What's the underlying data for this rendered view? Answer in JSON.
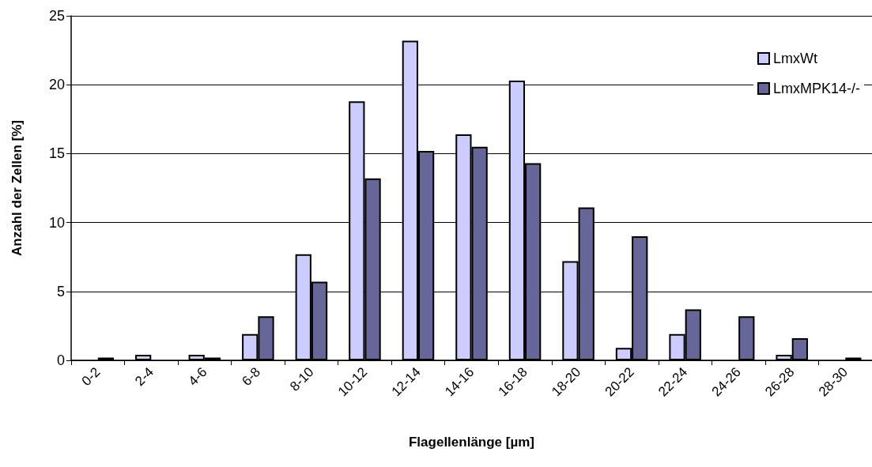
{
  "chart_data": {
    "type": "bar",
    "xlabel": "Flagellenlänge [µm]",
    "ylabel": "Anzahl der Zellen [%]",
    "categories": [
      "0-2",
      "2-4",
      "4-6",
      "6-8",
      "8-10",
      "10-12",
      "12-14",
      "14-16",
      "16-18",
      "18-20",
      "20-22",
      "22-24",
      "24-26",
      "26-28",
      "28-30"
    ],
    "series": [
      {
        "name": "LmxWt",
        "color": "#ccccff",
        "values": [
          0,
          0.4,
          0.4,
          1.9,
          7.7,
          18.8,
          23.2,
          16.4,
          20.3,
          7.2,
          0.9,
          1.9,
          0,
          0.4,
          0
        ]
      },
      {
        "name": "LmxMPK14-/-",
        "color": "#666699",
        "values": [
          0.2,
          0,
          0.2,
          3.2,
          5.7,
          13.2,
          15.2,
          15.5,
          14.3,
          11.1,
          9.0,
          3.7,
          3.2,
          1.6,
          0.2
        ]
      }
    ],
    "ylim": [
      0,
      25
    ],
    "yticks": [
      0,
      5,
      10,
      15,
      20,
      25
    ],
    "grid": "y",
    "legend": "top right"
  }
}
